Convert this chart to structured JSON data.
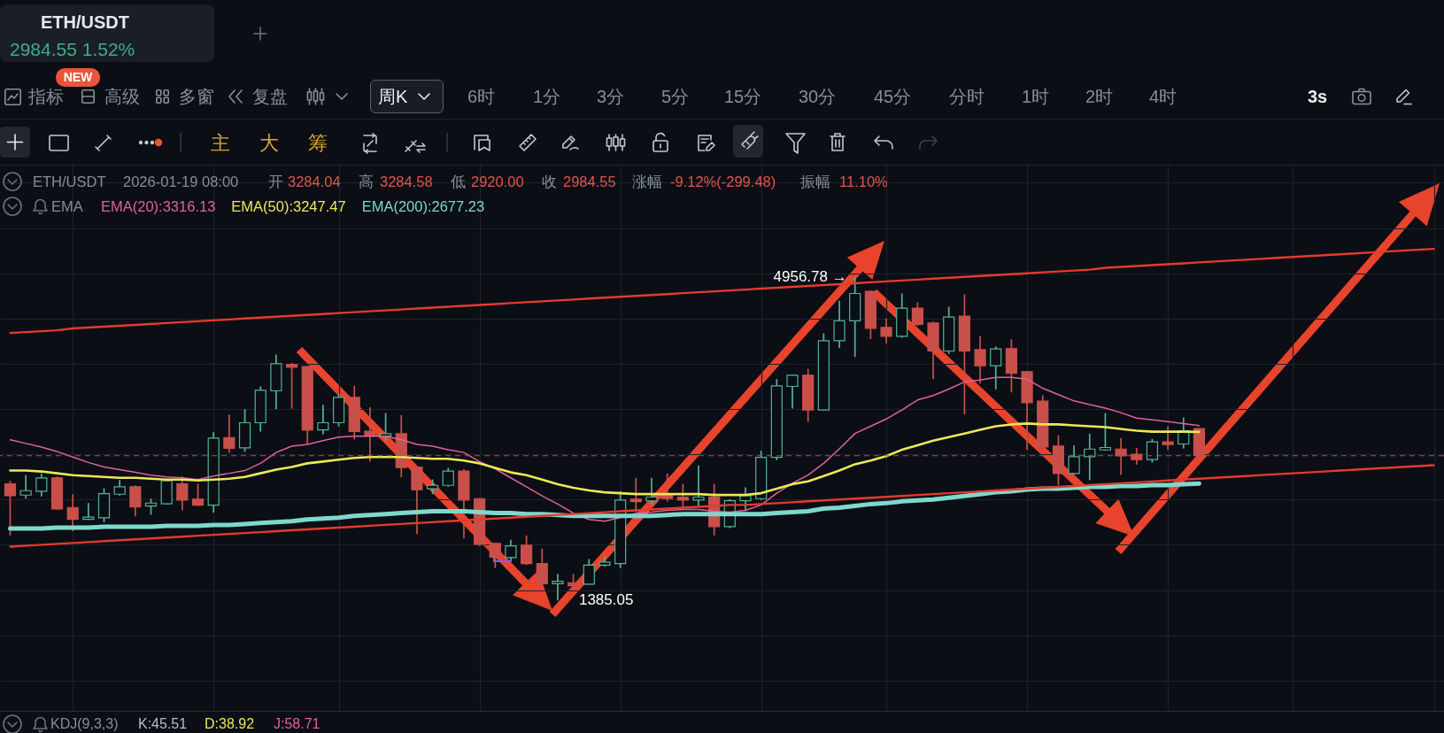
{
  "chart_data": {
    "type": "candlestick",
    "title": "ETH/USDT",
    "categories": [
      null,
      null,
      null,
      null,
      null,
      null,
      null,
      null,
      null,
      null,
      null,
      null,
      null,
      null,
      null,
      null,
      null,
      null,
      null,
      null,
      null,
      null,
      null,
      null,
      null,
      null,
      null,
      null,
      null,
      null,
      null,
      null,
      null,
      null,
      null,
      null,
      null,
      null,
      null,
      null,
      null,
      null,
      null,
      null,
      null,
      null,
      null,
      null,
      null,
      null,
      null,
      null,
      null,
      null,
      null,
      null,
      null,
      null,
      null,
      null,
      null,
      null,
      null,
      null,
      null,
      null,
      null,
      null,
      null,
      null,
      null,
      null,
      null,
      null,
      null,
      null,
      null,
      null,
      null,
      null,
      null,
      null,
      null,
      null,
      null,
      null,
      null,
      null,
      null,
      null,
      null,
      null
    ],
    "ohlc": [
      [
        2673,
        2706,
        2103,
        2543
      ],
      [
        2549,
        2771,
        2510,
        2598
      ],
      [
        2592,
        2788,
        2533,
        2739
      ],
      [
        2739,
        2755,
        2386,
        2396
      ],
      [
        2412,
        2559,
        2151,
        2282
      ],
      [
        2282,
        2461,
        2275,
        2305
      ],
      [
        2298,
        2624,
        2249,
        2566
      ],
      [
        2559,
        2716,
        2543,
        2641
      ],
      [
        2641,
        2657,
        2315,
        2419
      ],
      [
        2429,
        2510,
        2331,
        2461
      ],
      [
        2452,
        2712,
        2445,
        2706
      ],
      [
        2673,
        2755,
        2380,
        2494
      ],
      [
        2504,
        2673,
        2429,
        2438
      ],
      [
        2438,
        3244,
        2354,
        3179
      ],
      [
        3185,
        3440,
        3016,
        3065
      ],
      [
        3071,
        3499,
        3026,
        3349
      ],
      [
        3349,
        3750,
        3251,
        3707
      ],
      [
        3701,
        4102,
        3499,
        4001
      ],
      [
        3994,
        4011,
        3505,
        3962
      ],
      [
        3968,
        3978,
        3114,
        3267
      ],
      [
        3270,
        3547,
        3218,
        3349
      ],
      [
        3349,
        3668,
        3309,
        3629
      ],
      [
        3629,
        3756,
        3163,
        3251
      ],
      [
        3254,
        3521,
        2918,
        3205
      ],
      [
        3202,
        3456,
        3146,
        3228
      ],
      [
        3228,
        3433,
        2745,
        2853
      ],
      [
        2859,
        2869,
        2119,
        2608
      ],
      [
        2618,
        2722,
        2559,
        2657
      ],
      [
        2657,
        2853,
        2641,
        2814
      ],
      [
        2814,
        2836,
        2070,
        2494
      ],
      [
        2510,
        2517,
        1988,
        2005
      ],
      [
        2014,
        2021,
        1744,
        1864
      ],
      [
        1858,
        2054,
        1842,
        1988
      ],
      [
        1995,
        2103,
        1776,
        1793
      ],
      [
        1793,
        1956,
        1550,
        1570
      ],
      [
        1570,
        1678,
        1385.05,
        1597
      ],
      [
        1581,
        1678,
        1532,
        1548
      ],
      [
        1564,
        1842,
        1558,
        1776
      ],
      [
        1776,
        1874,
        1760,
        1809
      ],
      [
        1793,
        2592,
        1744,
        2494
      ],
      [
        2504,
        2739,
        2364,
        2478
      ],
      [
        2484,
        2739,
        2445,
        2527
      ],
      [
        2549,
        2788,
        2478,
        2510
      ],
      [
        2527,
        2673,
        2412,
        2494
      ],
      [
        2494,
        2876,
        2429,
        2527
      ],
      [
        2527,
        2673,
        2103,
        2200
      ],
      [
        2200,
        2504,
        2184,
        2487
      ],
      [
        2487,
        2634,
        2373,
        2543
      ],
      [
        2510,
        3039,
        2494,
        2967
      ],
      [
        2967,
        3831,
        2934,
        3756
      ],
      [
        3750,
        3880,
        3505,
        3874
      ],
      [
        3874,
        3945,
        3358,
        3489
      ],
      [
        3489,
        4337,
        3482,
        4255
      ],
      [
        4255,
        4696,
        4174,
        4474
      ],
      [
        4474,
        4956.78,
        4076,
        4777
      ],
      [
        4800,
        4810,
        4272,
        4392
      ],
      [
        4402,
        4500,
        4223,
        4304
      ],
      [
        4304,
        4777,
        4288,
        4614
      ],
      [
        4614,
        4679,
        4418,
        4435
      ],
      [
        4451,
        4467,
        3831,
        4141
      ],
      [
        4141,
        4630,
        4108,
        4516
      ],
      [
        4526,
        4767,
        3440,
        4141
      ],
      [
        4157,
        4304,
        3782,
        3978
      ],
      [
        3978,
        4190,
        3717,
        4164
      ],
      [
        4167,
        4272,
        3684,
        3896
      ],
      [
        3913,
        3919,
        3048,
        3570
      ],
      [
        3587,
        3652,
        3065,
        3081
      ],
      [
        3091,
        3211,
        2657,
        2787
      ],
      [
        2787,
        3097,
        2778,
        2973
      ],
      [
        2973,
        3228,
        2713,
        3058
      ],
      [
        3048,
        3456,
        3039,
        3075
      ],
      [
        3058,
        3179,
        2771,
        2983
      ],
      [
        3000,
        3071,
        2885,
        2941
      ],
      [
        2941,
        3169,
        2908,
        3137
      ],
      [
        3137,
        3309,
        3048,
        3107
      ],
      [
        3114,
        3407,
        3065,
        3260
      ],
      [
        3284.04,
        3284.58,
        2920.0,
        2984.55
      ],
      null,
      null,
      null,
      null,
      null,
      null,
      null,
      null,
      null,
      null,
      null,
      null,
      null,
      null,
      null
    ],
    "series": [
      {
        "name": "EMA(20):3316.13",
        "type": "line",
        "color": "#e0609f",
        "values": [
          3160,
          3120,
          3080,
          3030,
          2970,
          2910,
          2860,
          2830,
          2800,
          2770,
          2750,
          2740,
          2720,
          2760,
          2790,
          2820,
          2900,
          3020,
          3090,
          3110,
          3150,
          3190,
          3200,
          3200,
          3200,
          3160,
          3110,
          3090,
          3050,
          3020,
          2920,
          2840,
          2740,
          2640,
          2540,
          2450,
          2350,
          2280,
          2260,
          2300,
          2350,
          2360,
          2380,
          2390,
          2390,
          2370,
          2360,
          2380,
          2440,
          2570,
          2680,
          2770,
          2900,
          3060,
          3230,
          3310,
          3390,
          3490,
          3600,
          3650,
          3720,
          3800,
          3820,
          3850,
          3850,
          3830,
          3730,
          3660,
          3590,
          3550,
          3510,
          3460,
          3400,
          3380,
          3360,
          3340,
          3316.13,
          null,
          null,
          null,
          null,
          null,
          null,
          null,
          null,
          null,
          null,
          null,
          null,
          null,
          null,
          null
        ]
      },
      {
        "name": "EMA(50):3247.47",
        "type": "line",
        "color": "#ece858",
        "values": [
          2820,
          2820,
          2810,
          2790,
          2770,
          2760,
          2750,
          2740,
          2740,
          2730,
          2720,
          2720,
          2710,
          2720,
          2730,
          2750,
          2790,
          2830,
          2860,
          2900,
          2920,
          2940,
          2960,
          2970,
          2970,
          2970,
          2960,
          2950,
          2950,
          2930,
          2900,
          2850,
          2800,
          2770,
          2720,
          2670,
          2630,
          2600,
          2580,
          2570,
          2560,
          2560,
          2560,
          2560,
          2560,
          2550,
          2550,
          2550,
          2570,
          2620,
          2670,
          2700,
          2760,
          2820,
          2890,
          2930,
          2980,
          3050,
          3100,
          3150,
          3190,
          3230,
          3270,
          3310,
          3330,
          3340,
          3330,
          3330,
          3320,
          3310,
          3300,
          3280,
          3260,
          3250,
          3250,
          3250,
          3247.47,
          null,
          null,
          null,
          null,
          null,
          null,
          null,
          null,
          null,
          null,
          null,
          null,
          null,
          null,
          null
        ]
      },
      {
        "name": "EMA(200):2677.23",
        "type": "line",
        "color": "#7fd8cc",
        "values": [
          2180,
          2180,
          2180,
          2190,
          2190,
          2190,
          2200,
          2200,
          2200,
          2200,
          2210,
          2210,
          2210,
          2220,
          2220,
          2230,
          2240,
          2250,
          2260,
          2280,
          2290,
          2300,
          2320,
          2330,
          2340,
          2350,
          2360,
          2370,
          2370,
          2370,
          2360,
          2350,
          2350,
          2340,
          2340,
          2330,
          2320,
          2320,
          2320,
          2320,
          2320,
          2320,
          2330,
          2340,
          2340,
          2340,
          2340,
          2340,
          2340,
          2350,
          2360,
          2370,
          2400,
          2410,
          2430,
          2450,
          2460,
          2480,
          2490,
          2500,
          2520,
          2540,
          2560,
          2580,
          2590,
          2610,
          2620,
          2620,
          2630,
          2640,
          2640,
          2650,
          2650,
          2660,
          2660,
          2670,
          2677.23,
          null,
          null,
          null,
          null,
          null,
          null,
          null,
          null,
          null,
          null,
          null,
          null,
          null,
          null,
          null
        ]
      },
      {
        "type": "line",
        "color": "#e53a2d",
        "values": [
          4340,
          4350,
          4360,
          4370,
          4390,
          4400,
          4410,
          4420,
          4430,
          4440,
          4450,
          4460,
          4470,
          4480,
          4490,
          4500,
          4510,
          4520,
          4530,
          4540,
          4550,
          4560,
          4570,
          4580,
          4590,
          4600,
          4610,
          4620,
          4630,
          4640,
          4650,
          4660,
          4670,
          4680,
          4690,
          4700,
          4710,
          4720,
          4730,
          4740,
          4750,
          4760,
          4770,
          4780,
          4790,
          4800,
          4810,
          4820,
          4830,
          4840,
          4850,
          4860,
          4870,
          4880,
          4890,
          4900,
          4910,
          4920,
          4930,
          4940,
          4950,
          4960,
          4970,
          4980,
          4990,
          5000,
          5010,
          5020,
          5030,
          5040,
          5060,
          5070,
          5080,
          5090,
          5100,
          5110,
          5120,
          5130,
          5140,
          5150,
          5160,
          5170,
          5180,
          5190,
          5200,
          5210,
          5220,
          5230,
          5240,
          5250,
          5260,
          5270
        ]
      },
      {
        "type": "line",
        "color": "#e53a2d",
        "values": [
          1980,
          1990,
          2000,
          2010,
          2020,
          2030,
          2040,
          2050,
          2060,
          2070,
          2080,
          2090,
          2100,
          2110,
          2120,
          2130,
          2140,
          2150,
          2160,
          2170,
          2180,
          2190,
          2200,
          2210,
          2220,
          2230,
          2240,
          2250,
          2260,
          2270,
          2280,
          2290,
          2300,
          2310,
          2320,
          2330,
          2340,
          2350,
          2360,
          2370,
          2380,
          2390,
          2400,
          2410,
          2420,
          2430,
          2440,
          2440,
          2450,
          2460,
          2470,
          2480,
          2490,
          2500,
          2510,
          2520,
          2530,
          2540,
          2550,
          2560,
          2570,
          2580,
          2590,
          2600,
          2610,
          2620,
          2630,
          2640,
          2650,
          2660,
          2670,
          2680,
          2690,
          2700,
          2710,
          2720,
          2730,
          2740,
          2750,
          2760,
          2770,
          2780,
          2790,
          2800,
          2810,
          2820,
          2830,
          2840,
          2850,
          2860,
          2870,
          2880
        ]
      }
    ],
    "ylim": [
      165,
      6200
    ],
    "yticks": [
      500,
      1000,
      1500,
      2000,
      2500,
      3000,
      3500,
      4000,
      4500,
      5000,
      5500,
      6000
    ],
    "tick_labels": false,
    "grid": true,
    "ref_lines": [
      {
        "axis": "y",
        "value": 2984.55,
        "color": "#a8505c",
        "line_style": "dashed"
      }
    ],
    "annotations": [
      "2984.55 1.52%",
      "NEW",
      "指标",
      "高级",
      "多窗",
      "复盘",
      "周K",
      "6时",
      "1分",
      "3分",
      "5分",
      "15分",
      "30分",
      "45分",
      "分时",
      "1时",
      "2时",
      "4时",
      "3s",
      "主",
      "大",
      "筹",
      "ETH/USDT",
      "2026-01-19 08:00",
      "开",
      "3284.04",
      "高",
      "3284.58",
      "低",
      "2920.00",
      "收",
      "2984.55",
      "涨幅",
      "-9.12%(-299.48)",
      "振幅",
      "11.10%",
      "EMA",
      "KDJ(9,3,3)",
      "K:45.51",
      "D:38.92",
      "J:58.71",
      "4956.78 →",
      "1385.05"
    ]
  }
}
